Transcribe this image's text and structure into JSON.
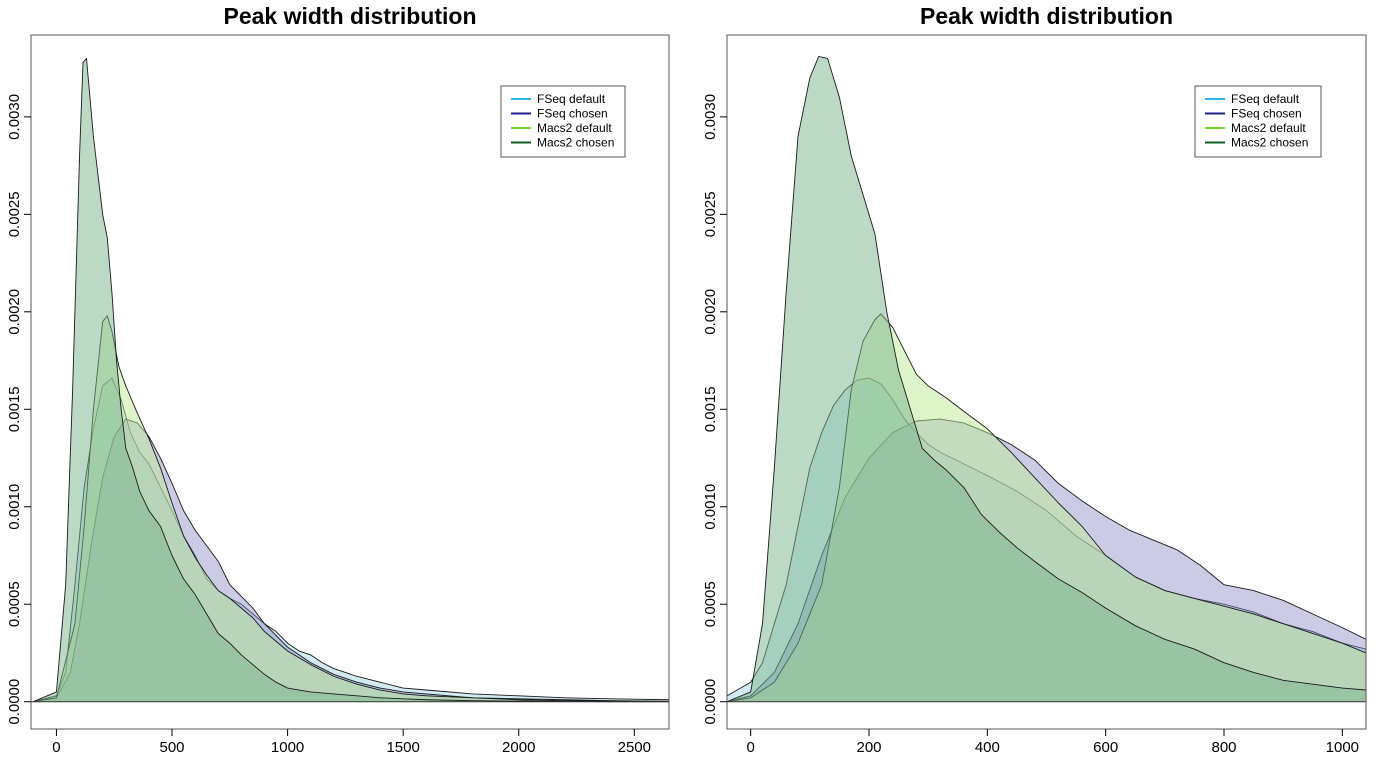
{
  "chart_data": [
    {
      "type": "area",
      "title": "Peak width distribution",
      "xlabel": "",
      "ylabel": "",
      "xlim": [
        -110,
        2650
      ],
      "ylim": [
        -0.00014,
        0.00342
      ],
      "xticks": [
        0,
        500,
        1000,
        1500,
        2000,
        2500
      ],
      "xtick_labels": [
        "0",
        "500",
        "1000",
        "1500",
        "2000",
        "2500"
      ],
      "yticks": [
        0,
        0.0005,
        0.001,
        0.0015,
        0.002,
        0.0025,
        0.003
      ],
      "ytick_labels": [
        "0.0000",
        "0.0005",
        "0.0010",
        "0.0015",
        "0.0020",
        "0.0025",
        "0.0030"
      ],
      "grid": false,
      "legend_position": "top-right",
      "legend": [
        "FSeq default",
        "FSeq chosen",
        "Macs2 default",
        "Macs2 chosen"
      ],
      "series": [
        {
          "name": "FSeq default",
          "color": "#29B6E6",
          "fill": "rgba(173,216,230,0.55)",
          "x": [
            -100,
            0,
            40,
            80,
            120,
            160,
            200,
            240,
            280,
            320,
            360,
            400,
            450,
            500,
            550,
            600,
            650,
            700,
            750,
            800,
            850,
            900,
            950,
            1000,
            1050,
            1100,
            1150,
            1200,
            1250,
            1300,
            1400,
            1500,
            1600,
            1800,
            2000,
            2200,
            2400,
            2650
          ],
          "y": [
            0,
            3e-05,
            0.00015,
            0.0006,
            0.0011,
            0.0014,
            0.00162,
            0.00166,
            0.00155,
            0.00138,
            0.00128,
            0.00122,
            0.0011,
            0.00098,
            0.00085,
            0.00075,
            0.00063,
            0.00057,
            0.00053,
            0.0005,
            0.00045,
            0.0004,
            0.00036,
            0.0003,
            0.00026,
            0.00024,
            0.0002,
            0.00017,
            0.00015,
            0.00013,
            0.0001,
            7e-05,
            6e-05,
            4e-05,
            3e-05,
            2e-05,
            1.5e-05,
            1e-05
          ]
        },
        {
          "name": "FSeq chosen",
          "color": "#1F1F8F",
          "fill": "rgba(140,140,200,0.45)",
          "x": [
            -100,
            0,
            60,
            100,
            150,
            200,
            250,
            300,
            350,
            400,
            450,
            500,
            550,
            600,
            650,
            700,
            750,
            800,
            850,
            900,
            950,
            1000,
            1050,
            1100,
            1150,
            1200,
            1300,
            1400,
            1500,
            1600,
            1800,
            2000,
            2200,
            2400,
            2650
          ],
          "y": [
            0,
            2e-05,
            0.00015,
            0.0004,
            0.0008,
            0.00115,
            0.00136,
            0.00145,
            0.00143,
            0.00136,
            0.00125,
            0.00112,
            0.00098,
            0.00088,
            0.0008,
            0.00072,
            0.0006,
            0.00054,
            0.00048,
            0.0004,
            0.00034,
            0.00028,
            0.00024,
            0.0002,
            0.00017,
            0.00014,
            0.0001,
            7e-05,
            5e-05,
            4e-05,
            2e-05,
            1.5e-05,
            1e-05,
            5e-06,
            2e-06
          ]
        },
        {
          "name": "Macs2 default",
          "color": "#6CD42A",
          "fill": "rgba(190,235,150,0.5)",
          "x": [
            -100,
            0,
            80,
            120,
            160,
            200,
            220,
            240,
            270,
            300,
            350,
            400,
            450,
            500,
            550,
            600,
            650,
            700,
            750,
            800,
            850,
            900,
            950,
            1000,
            1100,
            1200,
            1300,
            1400,
            1500,
            1600,
            1800,
            2000,
            2200,
            2400,
            2650
          ],
          "y": [
            0,
            2e-05,
            0.0004,
            0.0009,
            0.0015,
            0.00195,
            0.00198,
            0.0019,
            0.00172,
            0.00162,
            0.00148,
            0.00135,
            0.0012,
            0.00102,
            0.00085,
            0.00074,
            0.00065,
            0.00057,
            0.00053,
            0.00048,
            0.00043,
            0.00036,
            0.00031,
            0.00026,
            0.00019,
            0.00013,
            9e-05,
            6e-05,
            4e-05,
            3e-05,
            2e-05,
            1e-05,
            5e-06,
            3e-06,
            1e-06
          ]
        },
        {
          "name": "Macs2 chosen",
          "color": "#0F5F1F",
          "fill": "rgba(120,180,140,0.5)",
          "x": [
            -100,
            0,
            40,
            70,
            100,
            115,
            130,
            160,
            180,
            200,
            220,
            240,
            260,
            280,
            300,
            330,
            360,
            400,
            450,
            500,
            550,
            600,
            650,
            700,
            750,
            800,
            850,
            900,
            950,
            1000,
            1050,
            1100,
            1200,
            1300,
            1400,
            1500,
            1600,
            1800,
            2000,
            2200,
            2650
          ],
          "y": [
            0,
            5e-05,
            0.0006,
            0.0016,
            0.0028,
            0.00328,
            0.0033,
            0.0029,
            0.0027,
            0.0025,
            0.00238,
            0.0021,
            0.00175,
            0.0015,
            0.0013,
            0.0012,
            0.00108,
            0.00098,
            0.0009,
            0.00075,
            0.00063,
            0.00055,
            0.00045,
            0.00035,
            0.0003,
            0.00024,
            0.00019,
            0.00014,
            0.0001,
            7e-05,
            6e-05,
            5e-05,
            4e-05,
            3e-05,
            2e-05,
            1.5e-05,
            1e-05,
            5e-06,
            3e-06,
            1e-06,
            0
          ]
        }
      ]
    },
    {
      "type": "area",
      "title": "Peak width distribution",
      "xlabel": "",
      "ylabel": "",
      "xlim": [
        -40,
        1040
      ],
      "ylim": [
        -0.00014,
        0.00342
      ],
      "xticks": [
        0,
        200,
        400,
        600,
        800,
        1000
      ],
      "xtick_labels": [
        "0",
        "200",
        "400",
        "600",
        "800",
        "1000"
      ],
      "yticks": [
        0,
        0.0005,
        0.001,
        0.0015,
        0.002,
        0.0025,
        0.003
      ],
      "ytick_labels": [
        "0.0000",
        "0.0005",
        "0.0010",
        "0.0015",
        "0.0020",
        "0.0025",
        "0.0030"
      ],
      "grid": false,
      "legend_position": "top-right",
      "legend": [
        "FSeq default",
        "FSeq chosen",
        "Macs2 default",
        "Macs2 chosen"
      ],
      "series": [
        {
          "name": "FSeq default",
          "color": "#29B6E6",
          "fill": "rgba(173,216,230,0.55)",
          "x": [
            -40,
            0,
            20,
            40,
            60,
            80,
            100,
            120,
            140,
            160,
            180,
            200,
            220,
            240,
            260,
            280,
            300,
            320,
            340,
            360,
            400,
            450,
            500,
            550,
            600,
            650,
            700,
            750,
            800,
            850,
            900,
            950,
            1000,
            1040
          ],
          "y": [
            3e-05,
            0.0001,
            0.0002,
            0.0004,
            0.0006,
            0.0009,
            0.0012,
            0.00138,
            0.00152,
            0.0016,
            0.00165,
            0.00166,
            0.00163,
            0.00155,
            0.00145,
            0.00138,
            0.00132,
            0.00128,
            0.00125,
            0.00122,
            0.00116,
            0.00108,
            0.00098,
            0.00085,
            0.00075,
            0.00064,
            0.00057,
            0.00053,
            0.0005,
            0.00046,
            0.0004,
            0.00036,
            0.0003,
            0.00027
          ]
        },
        {
          "name": "FSeq chosen",
          "color": "#1F1F8F",
          "fill": "rgba(140,140,200,0.45)",
          "x": [
            -40,
            0,
            40,
            80,
            120,
            160,
            200,
            240,
            280,
            320,
            360,
            400,
            440,
            480,
            520,
            560,
            600,
            640,
            680,
            720,
            760,
            800,
            850,
            900,
            950,
            1000,
            1040
          ],
          "y": [
            0,
            3e-05,
            0.00015,
            0.0004,
            0.00075,
            0.00105,
            0.00125,
            0.00138,
            0.00144,
            0.00145,
            0.00143,
            0.00138,
            0.00132,
            0.00124,
            0.00112,
            0.00103,
            0.00095,
            0.00088,
            0.00083,
            0.00078,
            0.0007,
            0.0006,
            0.00057,
            0.00052,
            0.00045,
            0.00038,
            0.00032
          ]
        },
        {
          "name": "Macs2 default",
          "color": "#6CD42A",
          "fill": "rgba(190,235,150,0.5)",
          "x": [
            -40,
            0,
            40,
            80,
            120,
            150,
            170,
            190,
            210,
            220,
            240,
            260,
            280,
            300,
            330,
            360,
            400,
            440,
            480,
            520,
            560,
            600,
            650,
            700,
            750,
            800,
            850,
            900,
            950,
            1000,
            1040
          ],
          "y": [
            0,
            2e-05,
            0.0001,
            0.0003,
            0.0006,
            0.0011,
            0.0016,
            0.00185,
            0.00196,
            0.00199,
            0.00192,
            0.0018,
            0.00168,
            0.00162,
            0.00156,
            0.00149,
            0.0014,
            0.00128,
            0.00115,
            0.00102,
            0.0009,
            0.00075,
            0.00064,
            0.00057,
            0.00053,
            0.00049,
            0.00045,
            0.0004,
            0.00035,
            0.0003,
            0.00025
          ]
        },
        {
          "name": "Macs2 chosen",
          "color": "#0F5F1F",
          "fill": "rgba(120,180,140,0.5)",
          "x": [
            -40,
            0,
            20,
            40,
            60,
            80,
            100,
            115,
            130,
            150,
            170,
            190,
            210,
            230,
            250,
            270,
            290,
            310,
            330,
            360,
            390,
            420,
            450,
            480,
            520,
            560,
            600,
            650,
            700,
            750,
            800,
            850,
            900,
            950,
            1000,
            1040
          ],
          "y": [
            0,
            5e-05,
            0.0004,
            0.0012,
            0.0021,
            0.0029,
            0.0032,
            0.00331,
            0.0033,
            0.0031,
            0.0028,
            0.0026,
            0.0024,
            0.002,
            0.0017,
            0.0015,
            0.0013,
            0.00124,
            0.00119,
            0.0011,
            0.00096,
            0.00087,
            0.00079,
            0.00072,
            0.00063,
            0.00056,
            0.00048,
            0.00039,
            0.00032,
            0.00027,
            0.0002,
            0.00015,
            0.00011,
            9e-05,
            7e-05,
            6e-05
          ]
        }
      ]
    }
  ]
}
